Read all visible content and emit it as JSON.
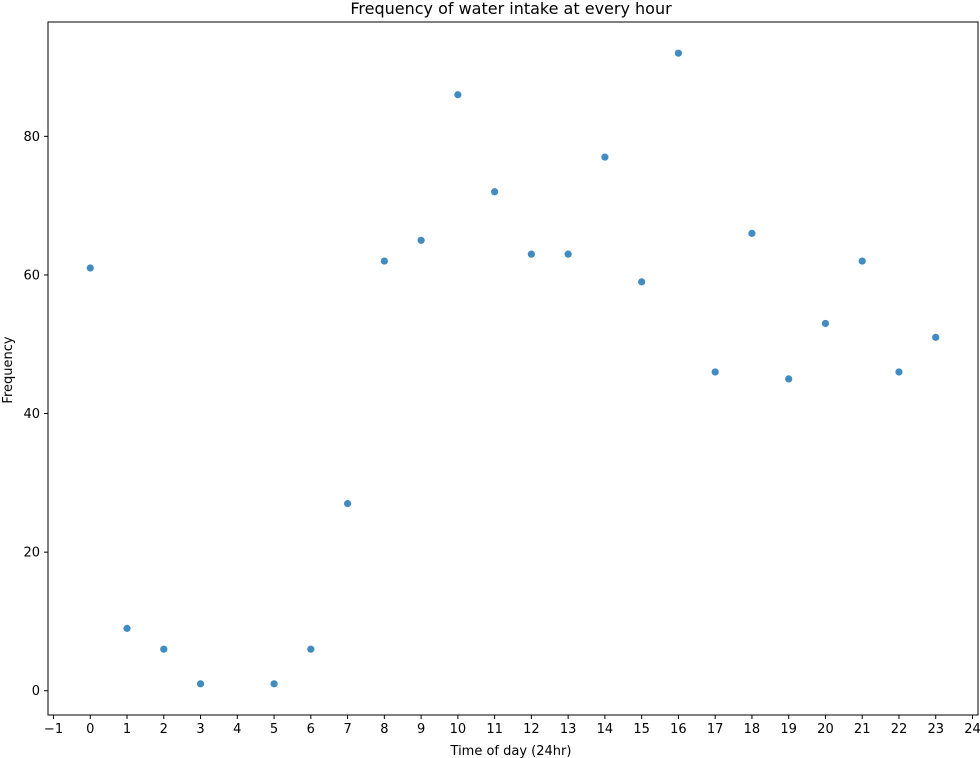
{
  "chart_data": {
    "type": "scatter",
    "title": "Frequency of water intake at every hour",
    "xlabel": "Time of day (24hr)",
    "ylabel": "Frequency",
    "xlim": [
      -1.15,
      24.15
    ],
    "ylim": [
      -3.5,
      96.5
    ],
    "xticks": [
      -1,
      0,
      1,
      2,
      3,
      4,
      5,
      6,
      7,
      8,
      9,
      10,
      11,
      12,
      13,
      14,
      15,
      16,
      17,
      18,
      19,
      20,
      21,
      22,
      23,
      24
    ],
    "yticks": [
      0,
      20,
      40,
      60,
      80
    ],
    "grid": false,
    "marker_color": "#1f77b4",
    "points": [
      {
        "x": 0,
        "y": 61
      },
      {
        "x": 1,
        "y": 9
      },
      {
        "x": 2,
        "y": 6
      },
      {
        "x": 3,
        "y": 1
      },
      {
        "x": 5,
        "y": 1
      },
      {
        "x": 6,
        "y": 6
      },
      {
        "x": 7,
        "y": 27
      },
      {
        "x": 8,
        "y": 62
      },
      {
        "x": 9,
        "y": 65
      },
      {
        "x": 10,
        "y": 86
      },
      {
        "x": 11,
        "y": 72
      },
      {
        "x": 12,
        "y": 63
      },
      {
        "x": 13,
        "y": 63
      },
      {
        "x": 14,
        "y": 77
      },
      {
        "x": 15,
        "y": 59
      },
      {
        "x": 16,
        "y": 92
      },
      {
        "x": 17,
        "y": 46
      },
      {
        "x": 18,
        "y": 66
      },
      {
        "x": 19,
        "y": 45
      },
      {
        "x": 20,
        "y": 53
      },
      {
        "x": 21,
        "y": 62
      },
      {
        "x": 22,
        "y": 46
      },
      {
        "x": 23,
        "y": 51
      }
    ]
  }
}
